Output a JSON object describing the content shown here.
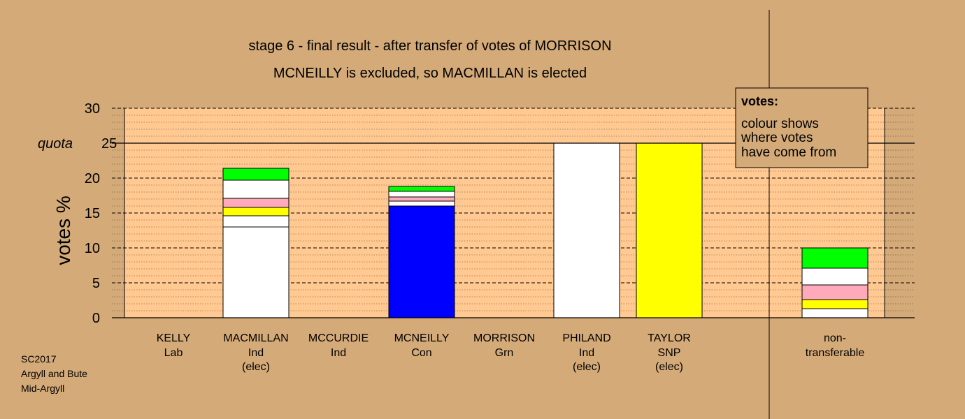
{
  "chart_data": {
    "type": "bar",
    "stacked": true,
    "title": "stage 6 - final result - after transfer of votes of MORRISON",
    "subtitle": "MCNEILLY is excluded, so MACMILLAN is elected",
    "ylabel": "votes %",
    "ylim": [
      0,
      30
    ],
    "yticks": [
      0,
      5,
      10,
      15,
      20,
      25,
      30
    ],
    "quota": {
      "label": "quota",
      "value": 25
    },
    "grid": "dashed major every 5, dotted minor every 1",
    "candidates": [
      {
        "name": "KELLY",
        "party": "Lab",
        "status": "",
        "segments": []
      },
      {
        "name": "MACMILLAN",
        "party": "Ind",
        "status": "(elec)",
        "segments": [
          {
            "color": "#ffffff",
            "value": 13.0
          },
          {
            "color": "#ffffff",
            "value": 1.6
          },
          {
            "color": "#ffff00",
            "value": 1.2
          },
          {
            "color": "#ffaabb",
            "value": 1.3
          },
          {
            "color": "#ffffff",
            "value": 2.6
          },
          {
            "color": "#00ff00",
            "value": 1.7
          }
        ]
      },
      {
        "name": "MCCURDIE",
        "party": "Ind",
        "status": "",
        "segments": []
      },
      {
        "name": "MCNEILLY",
        "party": "Con",
        "status": "",
        "segments": [
          {
            "color": "#0000ff",
            "value": 16.0
          },
          {
            "color": "#ffffff",
            "value": 0.7
          },
          {
            "color": "#ffaabb",
            "value": 0.6
          },
          {
            "color": "#ffffff",
            "value": 0.8
          },
          {
            "color": "#00ff00",
            "value": 0.7
          }
        ]
      },
      {
        "name": "MORRISON",
        "party": "Grn",
        "status": "",
        "segments": []
      },
      {
        "name": "PHILAND",
        "party": "Ind",
        "status": "(elec)",
        "segments": [
          {
            "color": "#ffffff",
            "value": 25.0
          }
        ]
      },
      {
        "name": "TAYLOR",
        "party": "SNP",
        "status": "(elec)",
        "segments": [
          {
            "color": "#ffff00",
            "value": 25.0
          }
        ]
      }
    ],
    "nontransferable": {
      "line1": "non-",
      "line2": "transferable",
      "segments": [
        {
          "color": "#ffffff",
          "value": 1.3
        },
        {
          "color": "#ffff00",
          "value": 1.3
        },
        {
          "color": "#ffaabb",
          "value": 2.1
        },
        {
          "color": "#ffffff",
          "value": 2.4
        },
        {
          "color": "#00ff00",
          "value": 2.9
        }
      ]
    },
    "legend": {
      "title": "votes:",
      "lines": [
        "colour shows",
        "where votes",
        "have come from"
      ],
      "placement": "top-right"
    }
  },
  "credits": [
    "SC2017",
    "Argyll and Bute",
    "Mid-Argyll"
  ]
}
